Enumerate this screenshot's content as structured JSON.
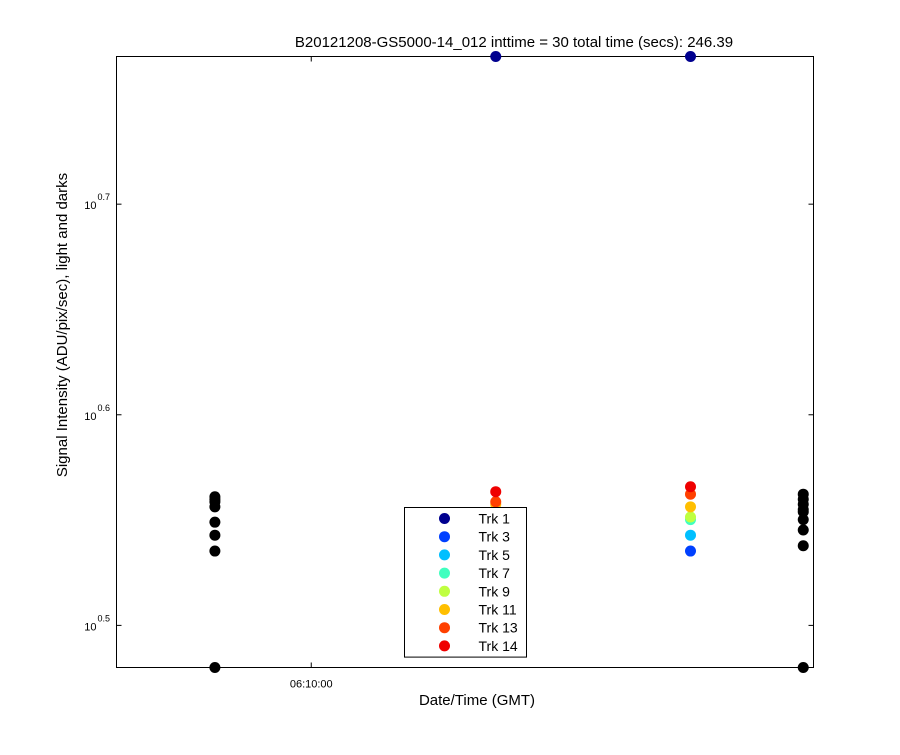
{
  "chart_data": {
    "type": "scatter",
    "title": "B20121208-GS5000-14_012 inttime = 30 total time (secs): 246.39",
    "xlabel": "Date/Time (GMT)",
    "ylabel": "Signal Intensity (ADU/pix/sec), light and darks",
    "x_ticks": [
      {
        "label": "06:10:00",
        "x": 0.1
      }
    ],
    "x_range": [
      -0.85,
      2.55
    ],
    "y_scale": "log",
    "y_ticks": [
      {
        "base": "10",
        "exp": "0.5",
        "value": 3.1623
      },
      {
        "base": "10",
        "exp": "0.6",
        "value": 3.9811
      },
      {
        "base": "10",
        "exp": "0.7",
        "value": 5.0119
      }
    ],
    "ylim": [
      3.02,
      5.89
    ],
    "grid": false,
    "legend_position": "bottom-center",
    "series": [
      {
        "name": "Trk 1",
        "color": "#00008f",
        "points": [
          [
            1.0,
            5.89
          ],
          [
            1.95,
            5.89
          ]
        ]
      },
      {
        "name": "Trk 3",
        "color": "#0040ff",
        "points": [
          [
            1.0,
            3.44
          ],
          [
            1.95,
            3.43
          ]
        ]
      },
      {
        "name": "Trk 5",
        "color": "#00bfff",
        "points": [
          [
            1.0,
            3.49
          ],
          [
            1.95,
            3.49
          ]
        ]
      },
      {
        "name": "Trk 7",
        "color": "#40ffbf",
        "points": [
          [
            1.0,
            3.53
          ],
          [
            1.95,
            3.55
          ]
        ]
      },
      {
        "name": "Trk 9",
        "color": "#bfff40",
        "points": [
          [
            1.0,
            3.59
          ],
          [
            1.95,
            3.56
          ]
        ]
      },
      {
        "name": "Trk 11",
        "color": "#ffbf00",
        "points": [
          [
            1.0,
            3.61
          ],
          [
            1.95,
            3.6
          ]
        ]
      },
      {
        "name": "Trk 13",
        "color": "#ff4000",
        "points": [
          [
            1.0,
            3.62
          ],
          [
            1.95,
            3.65
          ]
        ]
      },
      {
        "name": "Trk 14",
        "color": "#ef0000",
        "points": [
          [
            1.0,
            3.66
          ],
          [
            1.95,
            3.68
          ]
        ]
      },
      {
        "color": "#000000",
        "points": [
          [
            -0.37,
            3.02
          ],
          [
            -0.37,
            3.43
          ],
          [
            -0.37,
            3.49
          ],
          [
            -0.37,
            3.54
          ],
          [
            -0.37,
            3.6
          ],
          [
            -0.37,
            3.62
          ],
          [
            -0.37,
            3.63
          ],
          [
            -0.37,
            3.64
          ],
          [
            2.5,
            3.02
          ],
          [
            2.5,
            3.45
          ],
          [
            2.5,
            3.51
          ],
          [
            2.5,
            3.55
          ],
          [
            2.5,
            3.58
          ],
          [
            2.5,
            3.59
          ],
          [
            2.5,
            3.61
          ],
          [
            2.5,
            3.63
          ],
          [
            2.5,
            3.65
          ]
        ]
      }
    ]
  }
}
